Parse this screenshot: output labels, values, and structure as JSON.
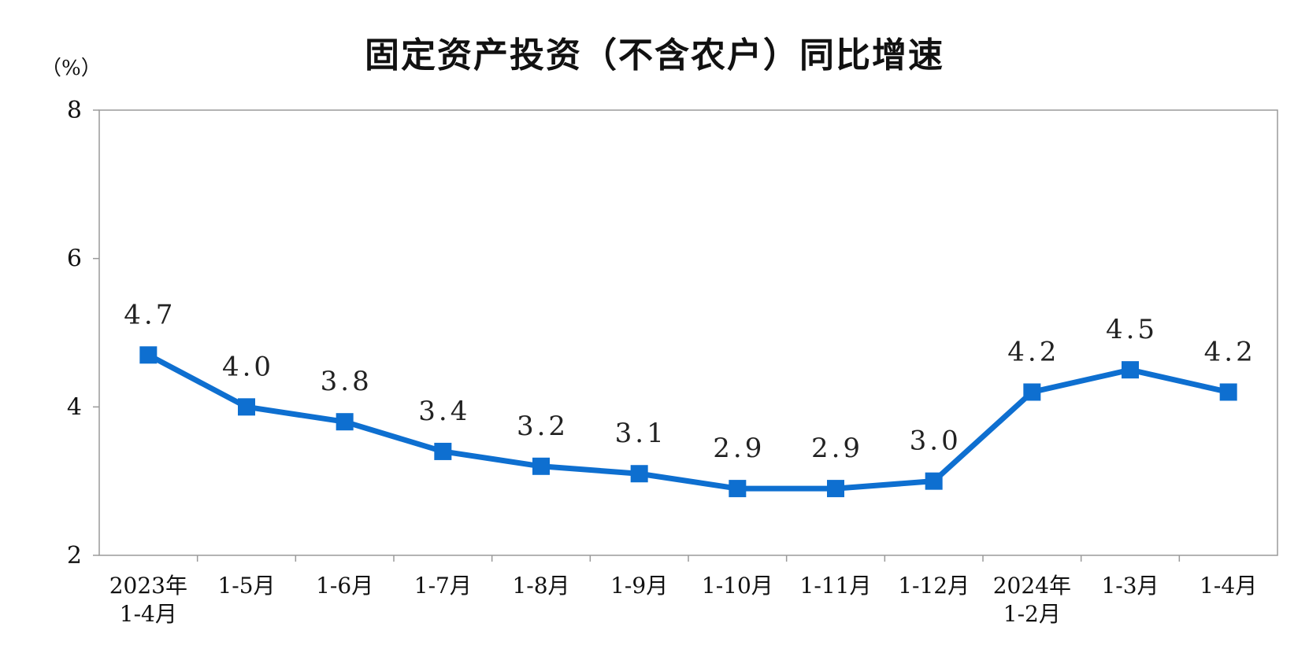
{
  "chart_data": {
    "type": "line",
    "title": "固定资产投资（不含农户）同比增速",
    "unit_label": "（%）",
    "xlabel": "",
    "ylabel": "",
    "categories": [
      [
        "2023年",
        "1-4月"
      ],
      [
        "1-5月"
      ],
      [
        "1-6月"
      ],
      [
        "1-7月"
      ],
      [
        "1-8月"
      ],
      [
        "1-9月"
      ],
      [
        "1-10月"
      ],
      [
        "1-11月"
      ],
      [
        "1-12月"
      ],
      [
        "2024年",
        "1-2月"
      ],
      [
        "1-3月"
      ],
      [
        "1-4月"
      ]
    ],
    "values": [
      4.7,
      4.0,
      3.8,
      3.4,
      3.2,
      3.1,
      2.9,
      2.9,
      3.0,
      4.2,
      4.5,
      4.2
    ],
    "data_labels": [
      "4.7",
      "4.0",
      "3.8",
      "3.4",
      "3.2",
      "3.1",
      "2.9",
      "2.9",
      "3.0",
      "4.2",
      "4.5",
      "4.2"
    ],
    "ylim": [
      2,
      8
    ],
    "yticks": [
      2,
      4,
      6,
      8
    ],
    "grid": false,
    "legend": "none",
    "colors": {
      "line": "#0e6fd0",
      "marker": "#0e6fd0",
      "axis": "#9a9a9a"
    }
  }
}
